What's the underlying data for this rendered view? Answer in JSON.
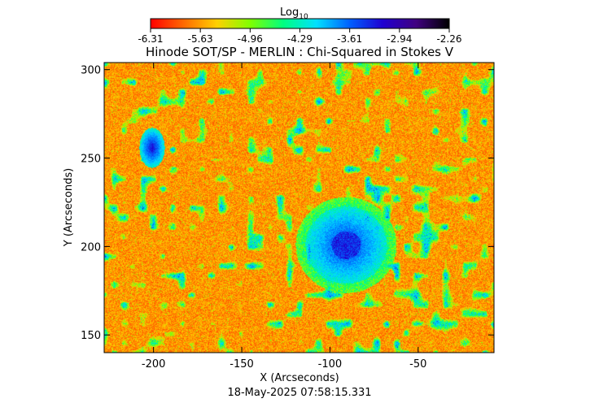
{
  "chart_data": {
    "type": "heatmap",
    "title": "Hinode SOT/SP - MERLIN : Chi-Squared in Stokes V",
    "colorbar": {
      "label": "Log",
      "label_subscript": "10",
      "min": -6.31,
      "max": -2.26,
      "tick_labels": [
        "-6.31",
        "-5.63",
        "-4.96",
        "-4.29",
        "-3.61",
        "-2.94",
        "-2.26"
      ],
      "colors": [
        "#ff0000",
        "#ff6a00",
        "#ffd000",
        "#80ff00",
        "#00ff80",
        "#00e0ff",
        "#0060ff",
        "#2000d0",
        "#400080",
        "#000000"
      ]
    },
    "xlabel": "X (Arcseconds)",
    "ylabel": "Y (Arcseconds)",
    "xlim": [
      -228,
      -7
    ],
    "ylim": [
      140,
      304
    ],
    "xticks": [
      -200,
      -150,
      -100,
      -50
    ],
    "yticks": [
      150,
      200,
      250,
      300
    ],
    "features": [
      {
        "kind": "sunspot",
        "x": -91,
        "y": 201
      },
      {
        "kind": "pore",
        "x": -201,
        "y": 256
      }
    ],
    "timestamp": "18-May-2025 07:58:15.331"
  }
}
